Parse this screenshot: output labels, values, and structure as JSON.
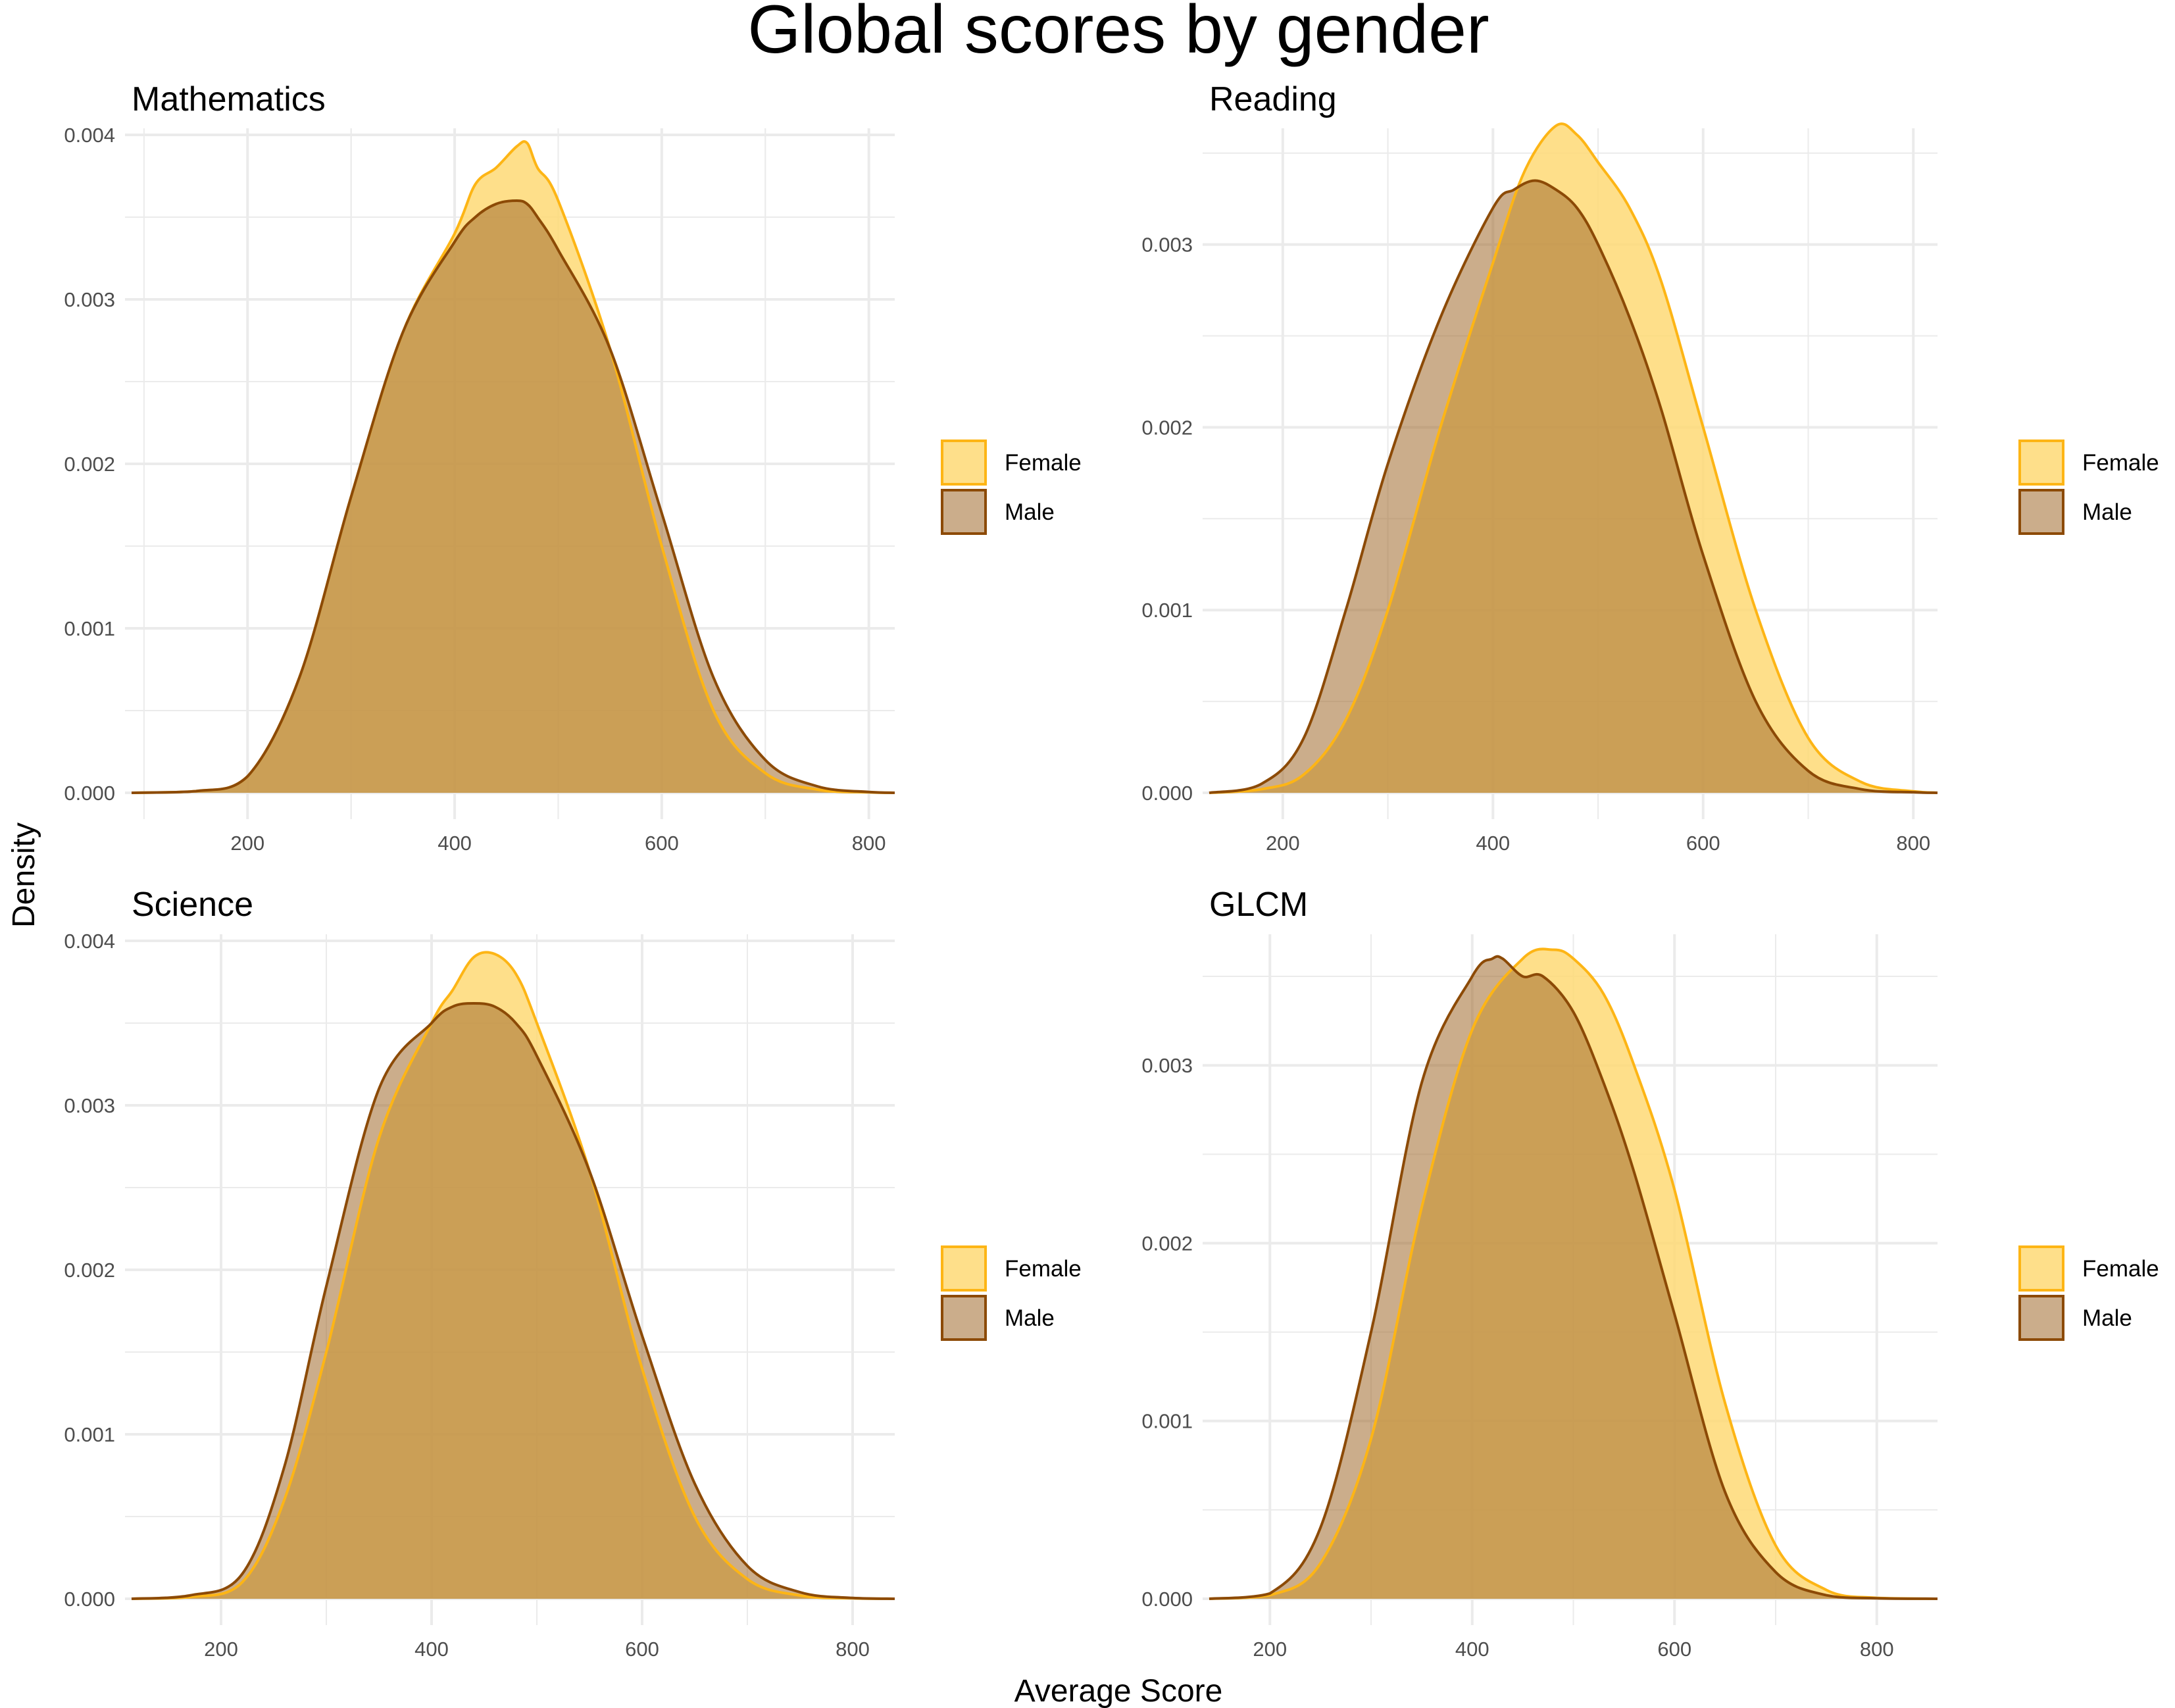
{
  "figure": {
    "title": "Global scores by gender",
    "xlabel": "Average Score",
    "ylabel": "Density"
  },
  "colors": {
    "female_fill": "#fed976",
    "female_line": "#fdb515",
    "male_fill": "#a0692c",
    "male_line": "#8c4a06",
    "grid": "#ebebeb",
    "text": "#4d4d4d"
  },
  "chart_data": [
    {
      "type": "area",
      "title": "Mathematics",
      "xlim": [
        88,
        825
      ],
      "ylim": [
        0,
        0.004
      ],
      "x_ticks": [
        200,
        400,
        600,
        800
      ],
      "y_ticks": [
        0.0,
        0.001,
        0.002,
        0.003,
        0.004
      ],
      "y_tick_labels": [
        "0.000",
        "0.001",
        "0.002",
        "0.003",
        "0.004"
      ],
      "grid": true,
      "legend_position": "right",
      "series": [
        {
          "name": "Female",
          "x": [
            88,
            150,
            200,
            250,
            300,
            350,
            400,
            420,
            440,
            460,
            470,
            480,
            500,
            550,
            600,
            650,
            700,
            750,
            800,
            825
          ],
          "y": [
            0,
            1e-05,
            0.0001,
            0.0007,
            0.0018,
            0.0028,
            0.0034,
            0.0037,
            0.0038,
            0.00393,
            0.00395,
            0.0038,
            0.0036,
            0.0027,
            0.0015,
            0.0005,
            0.00012,
            2e-05,
            3e-06,
            0
          ]
        },
        {
          "name": "Male",
          "x": [
            88,
            150,
            200,
            250,
            300,
            350,
            400,
            420,
            440,
            460,
            470,
            480,
            500,
            550,
            600,
            650,
            700,
            750,
            800,
            825
          ],
          "y": [
            0,
            1e-05,
            0.0001,
            0.0007,
            0.0018,
            0.0028,
            0.00335,
            0.0035,
            0.00358,
            0.0036,
            0.00358,
            0.0035,
            0.0033,
            0.0027,
            0.0017,
            0.0007,
            0.0002,
            4e-05,
            5e-06,
            0
          ]
        }
      ]
    },
    {
      "type": "area",
      "title": "Reading",
      "xlim": [
        130,
        823
      ],
      "ylim": [
        0,
        0.0036
      ],
      "x_ticks": [
        200,
        400,
        600,
        800
      ],
      "y_ticks": [
        0.0,
        0.001,
        0.002,
        0.003
      ],
      "y_tick_labels": [
        "0.000",
        "0.001",
        "0.002",
        "0.003"
      ],
      "grid": true,
      "legend_position": "right",
      "series": [
        {
          "name": "Female",
          "x": [
            130,
            180,
            220,
            260,
            300,
            350,
            400,
            430,
            460,
            480,
            500,
            530,
            560,
            600,
            650,
            700,
            750,
            800,
            823
          ],
          "y": [
            0,
            2e-05,
            0.0001,
            0.0004,
            0.001,
            0.002,
            0.0029,
            0.0034,
            0.00365,
            0.0036,
            0.00345,
            0.0032,
            0.0028,
            0.002,
            0.001,
            0.0003,
            6e-05,
            8e-06,
            0
          ]
        },
        {
          "name": "Male",
          "x": [
            130,
            180,
            220,
            260,
            300,
            350,
            400,
            420,
            440,
            460,
            480,
            500,
            530,
            560,
            600,
            650,
            700,
            750,
            800,
            823
          ],
          "y": [
            0,
            5e-05,
            0.0003,
            0.001,
            0.0018,
            0.0026,
            0.0032,
            0.0033,
            0.00335,
            0.0033,
            0.0032,
            0.003,
            0.0026,
            0.0021,
            0.0013,
            0.0005,
            0.00012,
            2e-05,
            3e-06,
            0
          ]
        }
      ]
    },
    {
      "type": "area",
      "title": "Science",
      "xlim": [
        115,
        840
      ],
      "ylim": [
        0,
        0.004
      ],
      "x_ticks": [
        200,
        400,
        600,
        800
      ],
      "y_ticks": [
        0.0,
        0.001,
        0.002,
        0.003,
        0.004
      ],
      "y_tick_labels": [
        "0.000",
        "0.001",
        "0.002",
        "0.003",
        "0.004"
      ],
      "grid": true,
      "legend_position": "right",
      "series": [
        {
          "name": "Female",
          "x": [
            115,
            170,
            220,
            260,
            300,
            350,
            400,
            420,
            440,
            460,
            480,
            500,
            550,
            600,
            650,
            700,
            750,
            800,
            840
          ],
          "y": [
            0,
            1e-05,
            0.0001,
            0.0006,
            0.0015,
            0.0028,
            0.0035,
            0.0037,
            0.0039,
            0.00392,
            0.0038,
            0.0035,
            0.0026,
            0.0014,
            0.0005,
            0.00012,
            2e-05,
            3e-06,
            0
          ]
        },
        {
          "name": "Male",
          "x": [
            115,
            170,
            220,
            260,
            300,
            350,
            400,
            420,
            440,
            460,
            480,
            500,
            550,
            600,
            650,
            700,
            750,
            800,
            840
          ],
          "y": [
            0,
            2e-05,
            0.00015,
            0.0008,
            0.0019,
            0.0031,
            0.0035,
            0.0036,
            0.00362,
            0.0036,
            0.0035,
            0.0033,
            0.0026,
            0.0016,
            0.0007,
            0.0002,
            4e-05,
            5e-06,
            0
          ]
        }
      ]
    },
    {
      "type": "area",
      "title": "GLCM",
      "xlim": [
        140,
        860
      ],
      "ylim": [
        0,
        0.0037
      ],
      "x_ticks": [
        200,
        400,
        600,
        800
      ],
      "y_ticks": [
        0.0,
        0.001,
        0.002,
        0.003
      ],
      "y_tick_labels": [
        "0.000",
        "0.001",
        "0.002",
        "0.003"
      ],
      "grid": true,
      "legend_position": "right",
      "series": [
        {
          "name": "Female",
          "x": [
            140,
            200,
            250,
            300,
            350,
            400,
            450,
            480,
            500,
            530,
            560,
            600,
            650,
            700,
            750,
            800,
            860
          ],
          "y": [
            0,
            2e-05,
            0.0002,
            0.0009,
            0.0022,
            0.0032,
            0.0036,
            0.00365,
            0.0036,
            0.0034,
            0.003,
            0.0023,
            0.0011,
            0.0003,
            5e-05,
            5e-06,
            0
          ]
        },
        {
          "name": "Male",
          "x": [
            140,
            200,
            250,
            300,
            350,
            400,
            420,
            430,
            450,
            470,
            500,
            530,
            560,
            600,
            650,
            700,
            750,
            800,
            860
          ],
          "y": [
            0,
            3e-05,
            0.0004,
            0.0015,
            0.0029,
            0.0035,
            0.0036,
            0.0036,
            0.0035,
            0.0035,
            0.0033,
            0.0029,
            0.0024,
            0.0016,
            0.0006,
            0.00015,
            2e-05,
            3e-06,
            0
          ]
        }
      ]
    }
  ]
}
